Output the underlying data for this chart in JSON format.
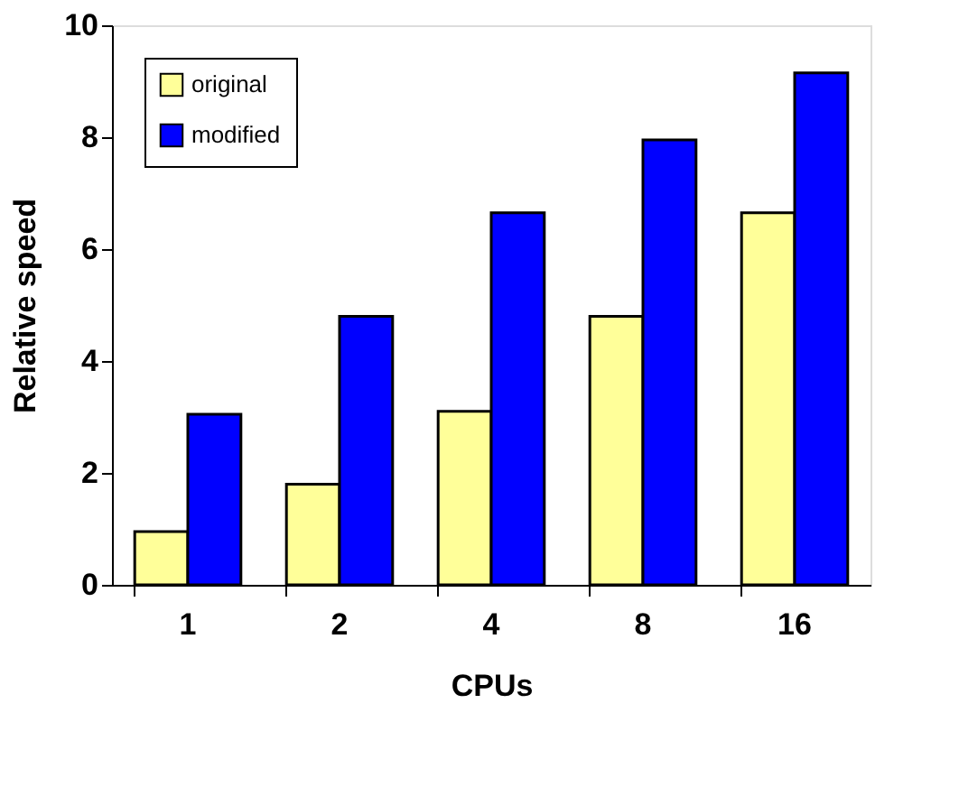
{
  "chart_data": {
    "type": "bar",
    "xlabel": "CPUs",
    "ylabel": "Relative speed",
    "categories": [
      "1",
      "2",
      "4",
      "8",
      "16"
    ],
    "series": [
      {
        "name": "original",
        "color": "#ffff99",
        "values": [
          0.95,
          1.8,
          3.1,
          4.8,
          6.65
        ]
      },
      {
        "name": "modified",
        "color": "#0000ff",
        "values": [
          3.05,
          4.8,
          6.65,
          7.95,
          9.15
        ]
      }
    ],
    "ylim": [
      0,
      10
    ],
    "yticks": [
      0,
      2,
      4,
      6,
      8,
      10
    ],
    "grid": false,
    "legend": "top left"
  }
}
